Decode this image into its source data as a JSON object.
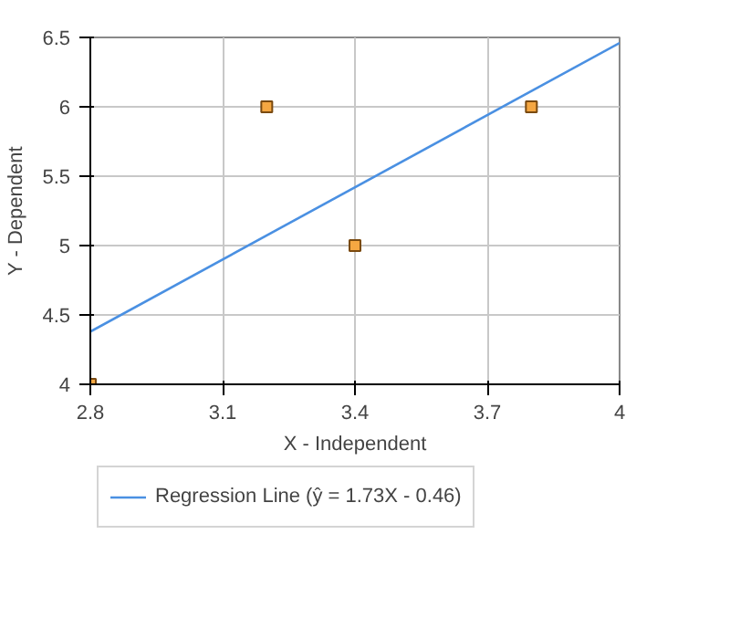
{
  "chart_data": {
    "type": "scatter",
    "xlabel": "X - Independent",
    "ylabel": "Y - Dependent",
    "xlim": [
      2.8,
      4
    ],
    "xticks": [
      2.8,
      3.1,
      3.4,
      3.7,
      4
    ],
    "ylim": [
      4,
      6.5
    ],
    "yticks": [
      4,
      4.5,
      5,
      5.5,
      6,
      6.5
    ],
    "grid": true,
    "legend": "bottom",
    "series": [
      {
        "color": "#f5a742",
        "marker": "square",
        "x": [
          2.8,
          3.2,
          3.4,
          3.8
        ],
        "values": [
          4,
          6,
          5,
          6
        ]
      },
      {
        "type": "line",
        "name": "Regression Line (ŷ = 1.73X - 0.46)",
        "color": "#4a90e2",
        "line_style": "solid",
        "x": [
          2.8,
          4
        ],
        "values": [
          4.38,
          6.46
        ]
      }
    ]
  }
}
